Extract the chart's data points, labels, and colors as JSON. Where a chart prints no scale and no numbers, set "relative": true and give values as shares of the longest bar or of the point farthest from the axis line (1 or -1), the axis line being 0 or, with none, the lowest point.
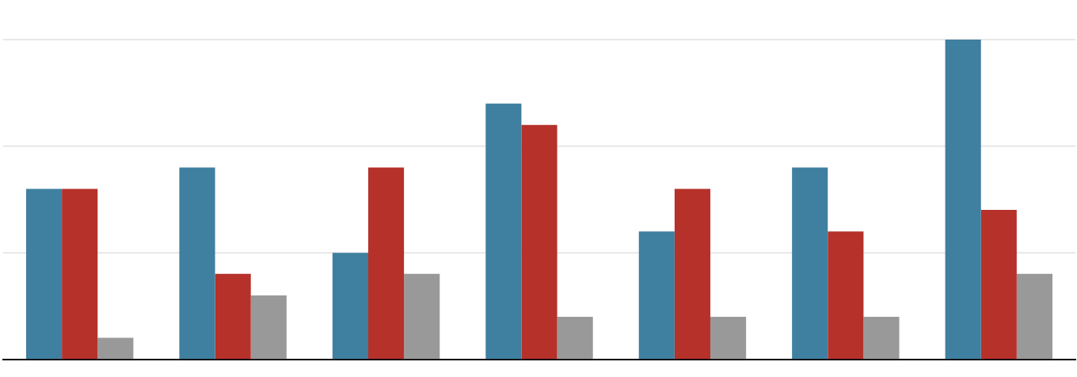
{
  "chart_data": {
    "type": "bar",
    "relative": true,
    "legend": false,
    "ref_lines": [
      {
        "axis": "y",
        "value": 0.333,
        "color": "#e0e0e0"
      },
      {
        "axis": "y",
        "value": 0.667,
        "color": "#e0e0e0"
      },
      {
        "axis": "y",
        "value": 1,
        "color": "#e0e0e0"
      }
    ],
    "categories": [
      null,
      null,
      null,
      null,
      null,
      null,
      null
    ],
    "series": [
      {
        "color": "#3f7fa0",
        "values": [
          0.533,
          0.6,
          0.333,
          0.8,
          0.4,
          0.6,
          1
        ]
      },
      {
        "color": "#b5312a",
        "values": [
          0.533,
          0.267,
          0.6,
          0.733,
          0.533,
          0.4,
          0.467
        ]
      },
      {
        "color": "#999999",
        "values": [
          0.067,
          0.2,
          0.267,
          0.133,
          0.133,
          0.133,
          0.267
        ]
      }
    ]
  }
}
